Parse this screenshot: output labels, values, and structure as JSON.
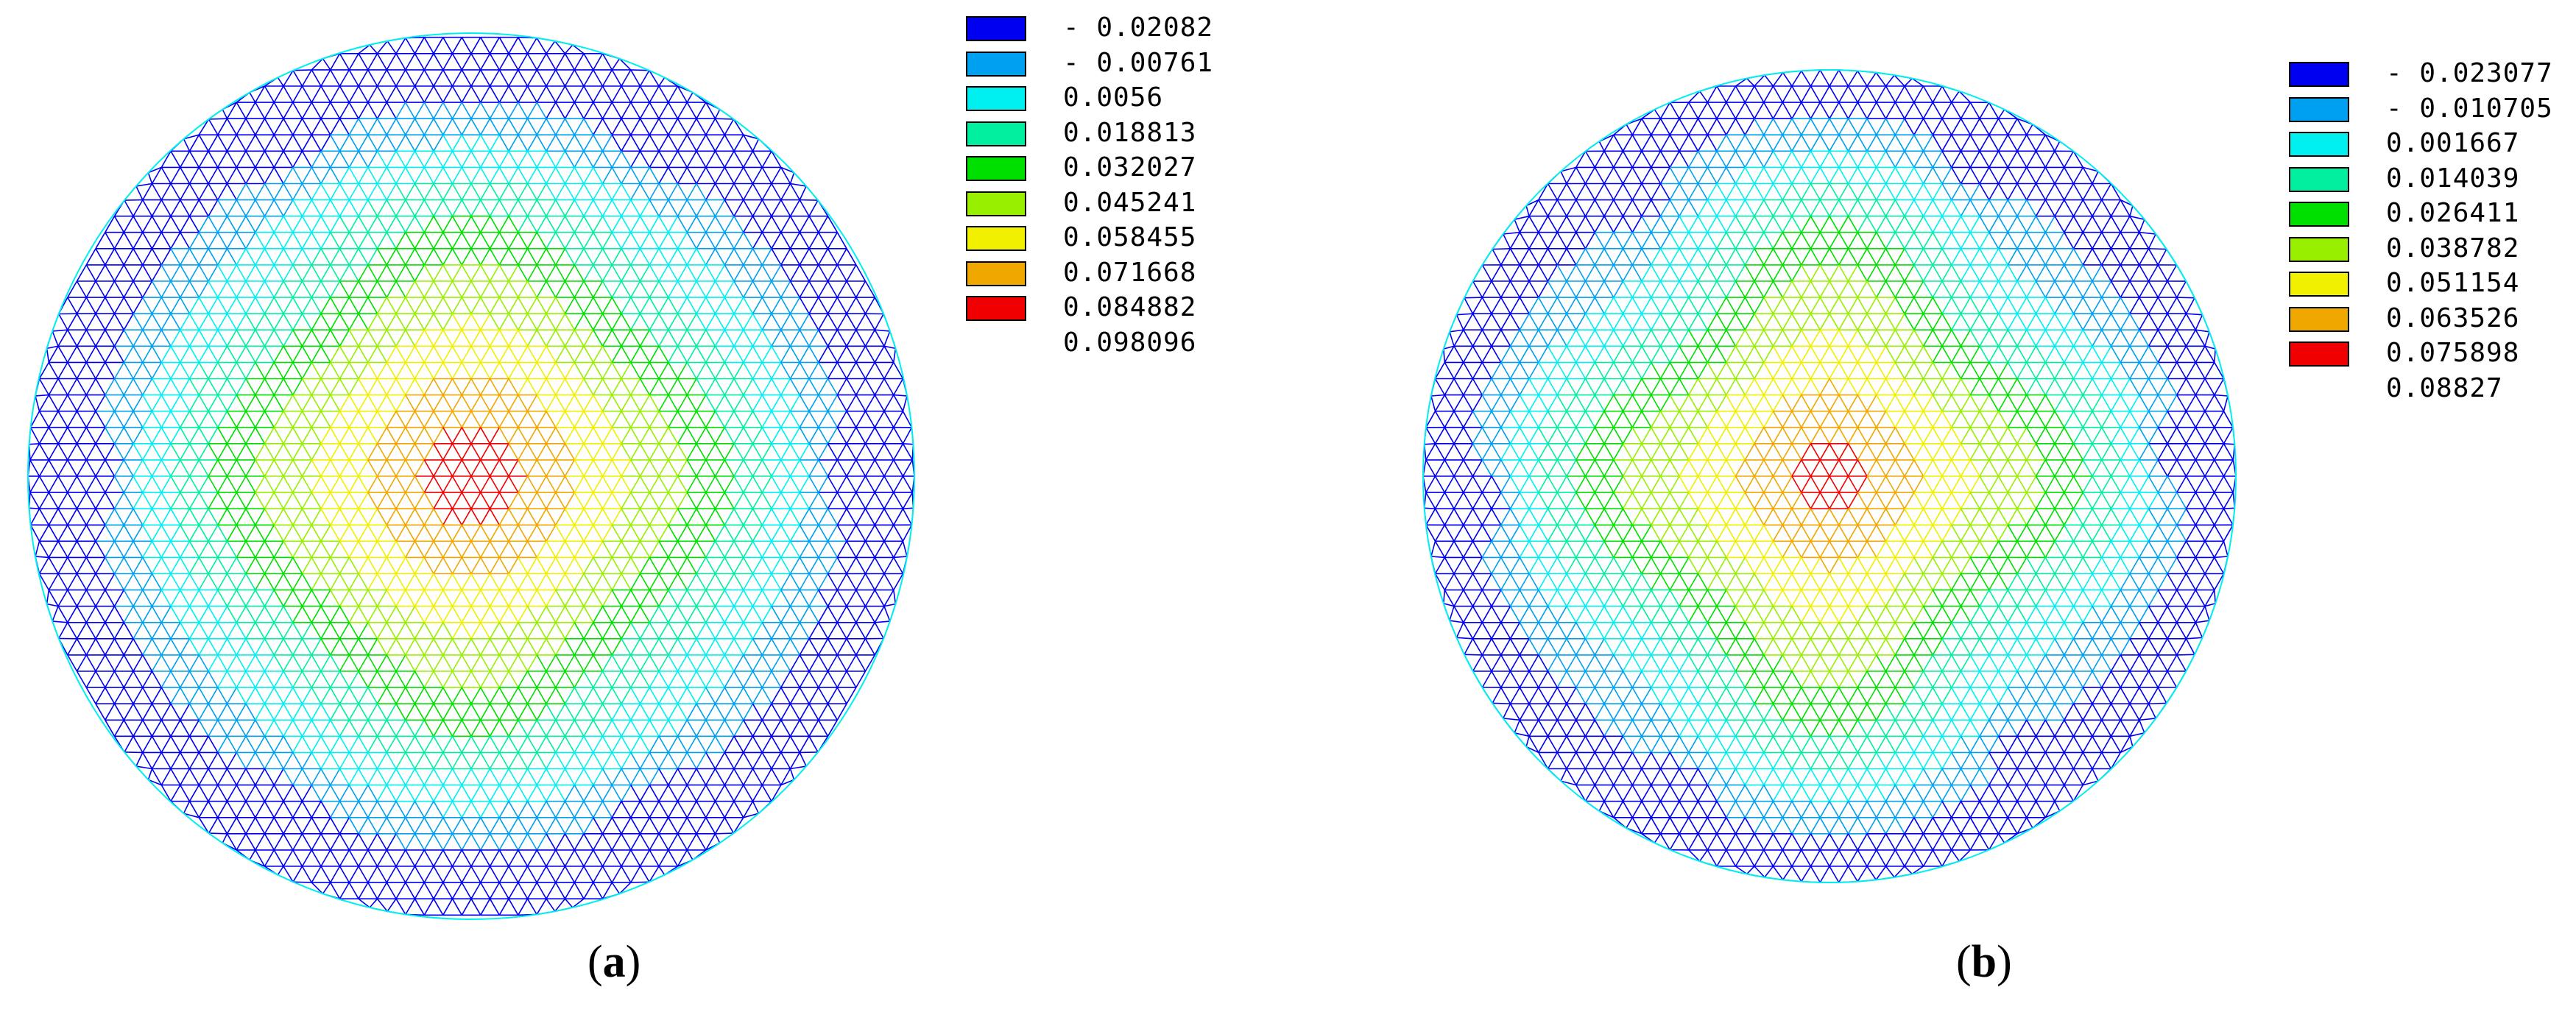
{
  "panels": [
    {
      "caption_open": "(",
      "caption_letter": "a",
      "caption_close": ")",
      "legend": [
        {
          "label": "- 0.02082",
          "color": "#0000f0"
        },
        {
          "label": "- 0.00761",
          "color": "#00a0f0"
        },
        {
          "label": "0.0056",
          "color": "#00f0f0"
        },
        {
          "label": "0.018813",
          "color": "#00f0a0"
        },
        {
          "label": "0.032027",
          "color": "#00e000"
        },
        {
          "label": "0.045241",
          "color": "#98f000"
        },
        {
          "label": "0.058455",
          "color": "#f0f000"
        },
        {
          "label": "0.071668",
          "color": "#f0a800"
        },
        {
          "label": "0.084882",
          "color": "#f00000"
        },
        {
          "label": "0.098096",
          "color": null
        }
      ]
    },
    {
      "caption_open": "(",
      "caption_letter": "b",
      "caption_close": ")",
      "legend": [
        {
          "label": "- 0.023077",
          "color": "#0000f0"
        },
        {
          "label": "- 0.010705",
          "color": "#00a0f0"
        },
        {
          "label": "0.001667",
          "color": "#00f0f0"
        },
        {
          "label": "0.014039",
          "color": "#00f0a0"
        },
        {
          "label": "0.026411",
          "color": "#00e000"
        },
        {
          "label": "0.038782",
          "color": "#98f000"
        },
        {
          "label": "0.051154",
          "color": "#f0f000"
        },
        {
          "label": "0.063526",
          "color": "#f0a800"
        },
        {
          "label": "0.075898",
          "color": "#f00000"
        },
        {
          "label": "0.08827",
          "color": null
        }
      ]
    }
  ]
}
